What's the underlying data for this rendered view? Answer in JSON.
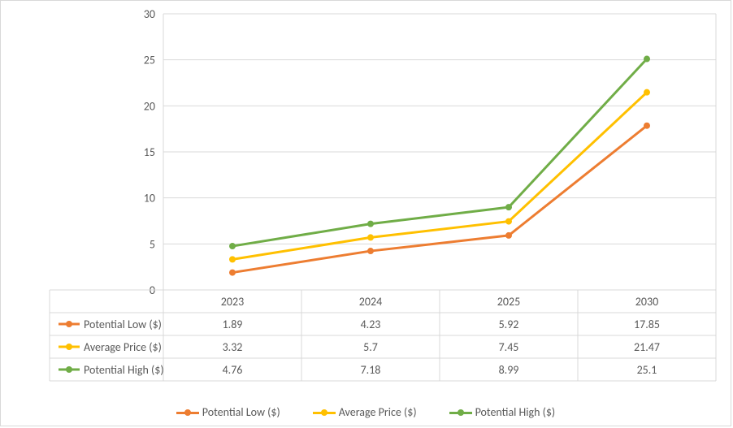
{
  "chart": {
    "type": "line",
    "background_color": "#ffffff",
    "border_color": "#d9d9d9",
    "grid_color": "#d9d9d9",
    "axis_text_color": "#595959",
    "axis_font_size": 14,
    "table_text_color": "#595959",
    "table_font_size": 14,
    "y_axis": {
      "min": 0,
      "max": 30,
      "tick_step": 5,
      "ticks": [
        0,
        5,
        10,
        15,
        20,
        25,
        30
      ]
    },
    "categories": [
      "2023",
      "2024",
      "2025",
      "2030"
    ],
    "series": [
      {
        "name": "Potential Low ($)",
        "color": "#ed7d31",
        "line_width": 3,
        "marker_size": 8,
        "values": [
          1.89,
          4.23,
          5.92,
          17.85
        ]
      },
      {
        "name": "Average Price ($)",
        "color": "#ffc000",
        "line_width": 3,
        "marker_size": 8,
        "values": [
          3.32,
          5.7,
          7.45,
          21.47
        ]
      },
      {
        "name": "Potential High ($)",
        "color": "#70ad47",
        "line_width": 3,
        "marker_size": 8,
        "values": [
          4.76,
          7.18,
          8.99,
          25.1
        ]
      }
    ],
    "legend": {
      "position": "bottom"
    }
  }
}
